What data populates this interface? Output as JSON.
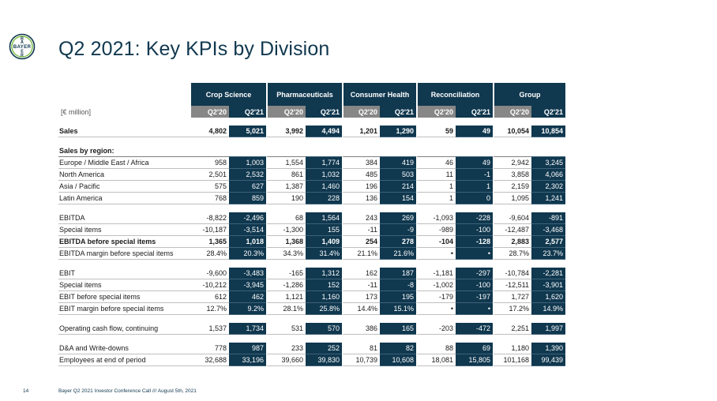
{
  "logo": {
    "letters": "BAYER"
  },
  "title": "Q2 2021: Key KPIs by Division",
  "unit_label": "[€ million]",
  "divisions": [
    "Crop Science",
    "Pharmaceuticals",
    "Consumer Health",
    "Reconciliation",
    "Group"
  ],
  "quarters": [
    "Q2'20",
    "Q2'21"
  ],
  "rows": [
    {
      "label": "Sales",
      "bold": true,
      "values": [
        "4,802",
        "5,021",
        "3,992",
        "4,494",
        "1,201",
        "1,290",
        "59",
        "49",
        "10,054",
        "10,854"
      ]
    },
    {
      "spacer": true
    },
    {
      "label": "Sales by region:",
      "bold": true,
      "header": true,
      "values": [
        "",
        "",
        "",
        "",
        "",
        "",
        "",
        "",
        "",
        ""
      ]
    },
    {
      "label": "Europe / Middle East / Africa",
      "values": [
        "958",
        "1,003",
        "1,554",
        "1,774",
        "384",
        "419",
        "46",
        "49",
        "2,942",
        "3,245"
      ]
    },
    {
      "label": "North America",
      "values": [
        "2,501",
        "2,532",
        "861",
        "1,032",
        "485",
        "503",
        "11",
        "-1",
        "3,858",
        "4,066"
      ]
    },
    {
      "label": "Asia / Pacific",
      "values": [
        "575",
        "627",
        "1,387",
        "1,460",
        "196",
        "214",
        "1",
        "1",
        "2,159",
        "2,302"
      ]
    },
    {
      "label": "Latin America",
      "values": [
        "768",
        "859",
        "190",
        "228",
        "136",
        "154",
        "1",
        "0",
        "1,095",
        "1,241"
      ]
    },
    {
      "spacer": true
    },
    {
      "label": "EBITDA",
      "values": [
        "-8,822",
        "-2,496",
        "68",
        "1,564",
        "243",
        "269",
        "-1,093",
        "-228",
        "-9,604",
        "-891"
      ]
    },
    {
      "label": "Special items",
      "values": [
        "-10,187",
        "-3,514",
        "-1,300",
        "155",
        "-11",
        "-9",
        "-989",
        "-100",
        "-12,487",
        "-3,468"
      ]
    },
    {
      "label": "EBITDA before special items",
      "bold": true,
      "values": [
        "1,365",
        "1,018",
        "1,368",
        "1,409",
        "254",
        "278",
        "-104",
        "-128",
        "2,883",
        "2,577"
      ]
    },
    {
      "label": "EBITDA margin before special items",
      "values": [
        "28.4%",
        "20.3%",
        "34.3%",
        "31.4%",
        "21.1%",
        "21.6%",
        "•",
        "•",
        "28.7%",
        "23.7%"
      ]
    },
    {
      "spacer": true
    },
    {
      "label": "EBIT",
      "values": [
        "-9,600",
        "-3,483",
        "-165",
        "1,312",
        "162",
        "187",
        "-1,181",
        "-297",
        "-10,784",
        "-2,281"
      ]
    },
    {
      "label": "Special items",
      "values": [
        "-10,212",
        "-3,945",
        "-1,286",
        "152",
        "-11",
        "-8",
        "-1,002",
        "-100",
        "-12,511",
        "-3,901"
      ]
    },
    {
      "label": "EBIT before special items",
      "values": [
        "612",
        "462",
        "1,121",
        "1,160",
        "173",
        "195",
        "-179",
        "-197",
        "1,727",
        "1,620"
      ]
    },
    {
      "label": "EBIT margin before special items",
      "values": [
        "12.7%",
        "9.2%",
        "28.1%",
        "25.8%",
        "14.4%",
        "15.1%",
        "•",
        "•",
        "17.2%",
        "14.9%"
      ]
    },
    {
      "spacer": true
    },
    {
      "label": "Operating cash flow, continuing",
      "values": [
        "1,537",
        "1,734",
        "531",
        "570",
        "386",
        "165",
        "-203",
        "-472",
        "2,251",
        "1,997"
      ]
    },
    {
      "spacer": true
    },
    {
      "label": "D&A and Write-downs",
      "values": [
        "778",
        "987",
        "233",
        "252",
        "81",
        "82",
        "88",
        "69",
        "1,180",
        "1,390"
      ]
    },
    {
      "label": "Employees at end of period",
      "values": [
        "32,688",
        "33,196",
        "39,660",
        "39,830",
        "10,739",
        "10,608",
        "18,081",
        "15,805",
        "101,168",
        "99,439"
      ]
    }
  ],
  "footer": {
    "page_number": "14",
    "text": "Bayer Q2 2021 Investor Conference Call /// August 5th, 2021"
  }
}
